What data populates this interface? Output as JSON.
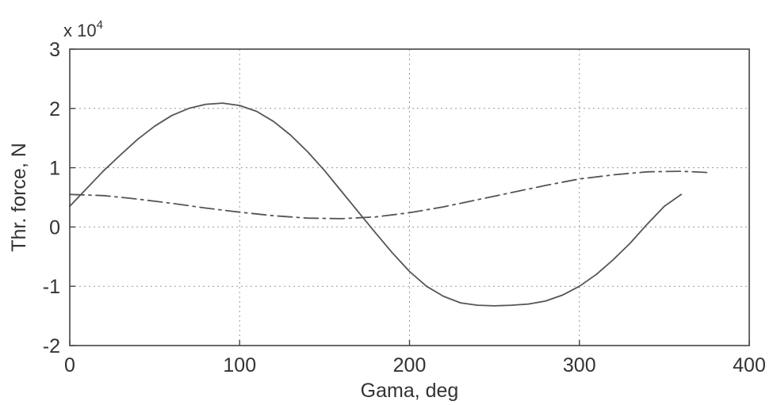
{
  "chart_data": {
    "type": "line",
    "title": "",
    "xlabel": "Gama, deg",
    "ylabel": "Thr. force, N",
    "y_multiplier": "x 10",
    "y_multiplier_exp": "4",
    "xlim": [
      0,
      400
    ],
    "ylim": [
      -2,
      3
    ],
    "x_ticks": [
      "0",
      "100",
      "200",
      "300",
      "400"
    ],
    "y_ticks": [
      "-2",
      "-1",
      "0",
      "1",
      "2",
      "3"
    ],
    "grid": true,
    "legend": "none",
    "series": [
      {
        "style": "solid",
        "color": "#555555",
        "x": [
          0,
          10,
          20,
          30,
          40,
          50,
          60,
          70,
          80,
          90,
          100,
          110,
          120,
          130,
          140,
          150,
          160,
          170,
          180,
          190,
          200,
          210,
          220,
          230,
          240,
          250,
          260,
          270,
          280,
          290,
          300,
          310,
          320,
          330,
          340,
          350,
          360
        ],
        "values": [
          0.35,
          0.65,
          0.95,
          1.22,
          1.48,
          1.7,
          1.88,
          2.0,
          2.07,
          2.09,
          2.05,
          1.95,
          1.78,
          1.55,
          1.27,
          0.95,
          0.6,
          0.25,
          -0.1,
          -0.44,
          -0.75,
          -1.0,
          -1.17,
          -1.28,
          -1.32,
          -1.33,
          -1.32,
          -1.3,
          -1.25,
          -1.15,
          -1.0,
          -0.8,
          -0.55,
          -0.27,
          0.05,
          0.35,
          0.55
        ]
      },
      {
        "style": "dashdot",
        "color": "#555555",
        "x": [
          0,
          20,
          40,
          60,
          80,
          100,
          120,
          140,
          160,
          180,
          200,
          220,
          240,
          260,
          280,
          300,
          320,
          340,
          360,
          375
        ],
        "values": [
          0.55,
          0.53,
          0.47,
          0.4,
          0.32,
          0.25,
          0.19,
          0.15,
          0.14,
          0.17,
          0.24,
          0.34,
          0.46,
          0.58,
          0.7,
          0.81,
          0.88,
          0.93,
          0.94,
          0.92
        ]
      }
    ]
  }
}
